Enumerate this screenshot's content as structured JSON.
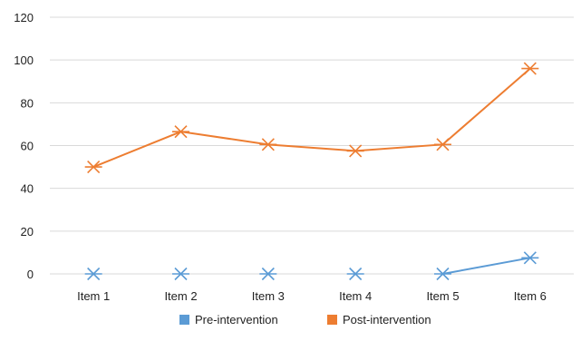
{
  "chart_data": {
    "type": "line",
    "categories": [
      "Item 1",
      "Item 2",
      "Item 3",
      "Item 4",
      "Item 5",
      "Item 6"
    ],
    "series": [
      {
        "name": "Pre-intervention",
        "values": [
          0,
          0,
          0,
          0,
          0,
          7.5
        ],
        "color": "#5b9bd5"
      },
      {
        "name": "Post-intervention",
        "values": [
          50,
          66.5,
          60.5,
          57.5,
          60.5,
          96
        ],
        "color": "#ed7d31"
      }
    ],
    "ylim": [
      0,
      120
    ],
    "yticks": [
      0,
      20,
      40,
      60,
      80,
      100,
      120
    ],
    "grid": true,
    "legend_position": "bottom",
    "marker": "x-star",
    "line_segments_drawn": [
      [
        4,
        5
      ]
    ],
    "title": "",
    "xlabel": "",
    "ylabel": ""
  }
}
